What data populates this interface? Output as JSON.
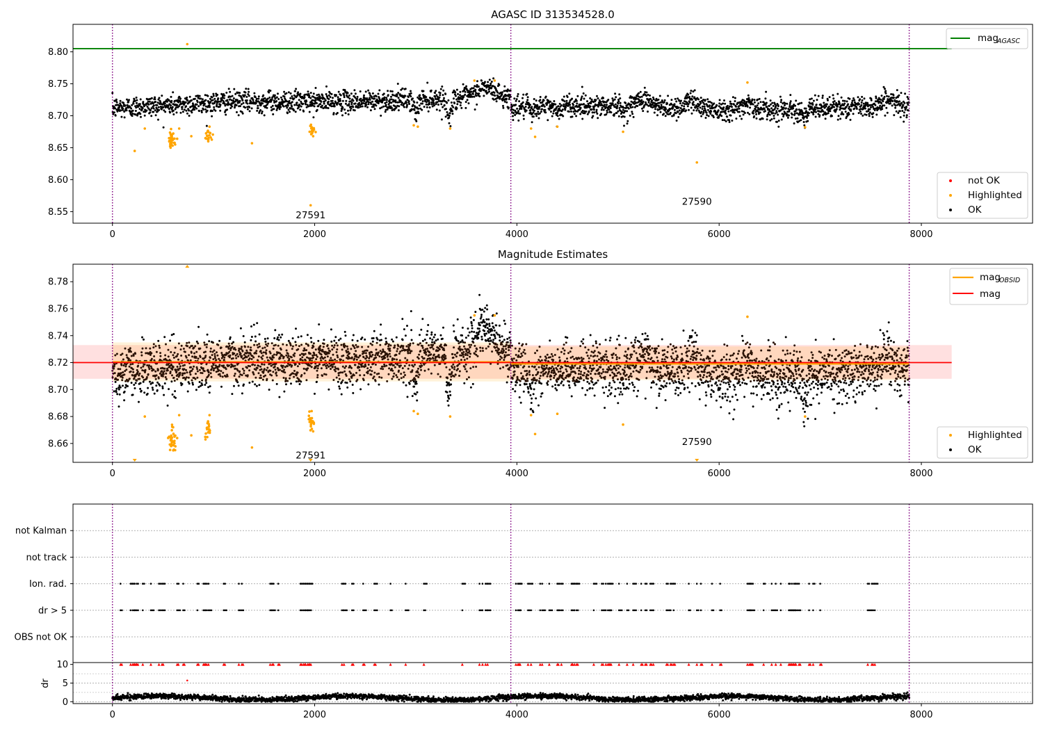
{
  "chart_data": [
    {
      "type": "scatter",
      "title": "AGASC ID 313534528.0",
      "xlim": [
        -390,
        9100
      ],
      "ylim": [
        8.532,
        8.843
      ],
      "xticks": [
        "0",
        "2000",
        "4000",
        "6000",
        "8000"
      ],
      "xtick_values": [
        0,
        2000,
        4000,
        6000,
        8000
      ],
      "yticks": [
        "8.55",
        "8.60",
        "8.65",
        "8.70",
        "8.75",
        "8.80"
      ],
      "ytick_values": [
        8.55,
        8.6,
        8.65,
        8.7,
        8.75,
        8.8
      ],
      "vlines": [
        0,
        3940,
        7880
      ],
      "hline": {
        "name": "mag",
        "subscript": "AGASC",
        "y": 8.805,
        "x_end": 8300,
        "color": "#008000"
      },
      "legend_lines": [
        {
          "name": "mag",
          "subscript": "AGASC",
          "color": "#008000"
        }
      ],
      "legend_points": [
        {
          "name": "not OK",
          "color": "#ff0000"
        },
        {
          "name": "Highlighted",
          "color": "#ffa500"
        },
        {
          "name": "OK",
          "color": "#000000"
        }
      ],
      "annotations": [
        {
          "text": "27591",
          "x": 1960,
          "y": 8.545
        },
        {
          "text": "27590",
          "x": 5780,
          "y": 8.566
        }
      ],
      "highlighted_points": [
        [
          220,
          8.645
        ],
        [
          320,
          8.68
        ],
        [
          560,
          8.665
        ],
        [
          580,
          8.658
        ],
        [
          600,
          8.672
        ],
        [
          620,
          8.655
        ],
        [
          640,
          8.664
        ],
        [
          660,
          8.68
        ],
        [
          740,
          8.812
        ],
        [
          780,
          8.668
        ],
        [
          920,
          8.665
        ],
        [
          940,
          8.675
        ],
        [
          960,
          8.683
        ],
        [
          1380,
          8.657
        ],
        [
          1950,
          8.675
        ],
        [
          1970,
          8.682
        ],
        [
          1985,
          8.668
        ],
        [
          1960,
          8.56
        ],
        [
          2980,
          8.685
        ],
        [
          3020,
          8.683
        ],
        [
          3340,
          8.68
        ],
        [
          3580,
          8.755
        ],
        [
          3780,
          8.755
        ],
        [
          4140,
          8.68
        ],
        [
          4180,
          8.667
        ],
        [
          4400,
          8.683
        ],
        [
          5050,
          8.675
        ],
        [
          5780,
          8.627
        ],
        [
          6280,
          8.752
        ],
        [
          6850,
          8.682
        ]
      ]
    },
    {
      "type": "scatter",
      "title": "Magnitude Estimates",
      "xlim": [
        -390,
        9100
      ],
      "ylim": [
        8.646,
        8.793
      ],
      "xticks": [
        "0",
        "2000",
        "4000",
        "6000",
        "8000"
      ],
      "xtick_values": [
        0,
        2000,
        4000,
        6000,
        8000
      ],
      "yticks": [
        "8.66",
        "8.68",
        "8.70",
        "8.72",
        "8.74",
        "8.76",
        "8.78"
      ],
      "ytick_values": [
        8.66,
        8.68,
        8.7,
        8.72,
        8.74,
        8.76,
        8.78
      ],
      "vlines": [
        0,
        3940,
        7880
      ],
      "mag": {
        "name": "mag",
        "y": 8.72,
        "band": [
          8.708,
          8.733
        ],
        "x_end": 8300,
        "color": "#ff0000"
      },
      "mag_obsid": [
        {
          "x0": 0,
          "x1": 3940,
          "y": 8.7205,
          "band": [
            8.706,
            8.735
          ]
        },
        {
          "x0": 3940,
          "x1": 7880,
          "y": 8.719,
          "band": [
            8.707,
            8.732
          ]
        }
      ],
      "legend_lines": [
        {
          "name": "mag",
          "subscript": "OBSID",
          "color": "#ffa500"
        },
        {
          "name": "mag",
          "subscript": "",
          "color": "#ff0000"
        }
      ],
      "legend_points": [
        {
          "name": "Highlighted",
          "color": "#ffa500"
        },
        {
          "name": "OK",
          "color": "#000000"
        }
      ],
      "annotations": [
        {
          "text": "27591",
          "x": 1960,
          "y": 8.6515
        },
        {
          "text": "27590",
          "x": 5780,
          "y": 8.6615
        }
      ],
      "highlighted_points": [
        [
          320,
          8.68
        ],
        [
          560,
          8.665
        ],
        [
          580,
          8.658
        ],
        [
          600,
          8.672
        ],
        [
          620,
          8.655
        ],
        [
          640,
          8.664
        ],
        [
          660,
          8.681
        ],
        [
          780,
          8.666
        ],
        [
          920,
          8.663
        ],
        [
          940,
          8.675
        ],
        [
          960,
          8.681
        ],
        [
          1380,
          8.657
        ],
        [
          1950,
          8.676
        ],
        [
          1970,
          8.684
        ],
        [
          1985,
          8.669
        ],
        [
          2980,
          8.684
        ],
        [
          3020,
          8.682
        ],
        [
          3340,
          8.68
        ],
        [
          3580,
          8.755
        ],
        [
          3780,
          8.755
        ],
        [
          4140,
          8.681
        ],
        [
          4180,
          8.667
        ],
        [
          4400,
          8.682
        ],
        [
          5050,
          8.674
        ],
        [
          6280,
          8.754
        ],
        [
          6850,
          8.68
        ]
      ],
      "out_of_range_markers": [
        {
          "x": 740,
          "dir": "up"
        },
        {
          "x": 220,
          "dir": "down"
        },
        {
          "x": 1960,
          "dir": "down"
        },
        {
          "x": 5780,
          "dir": "down"
        }
      ]
    },
    {
      "type": "scatter",
      "title": "",
      "xlim": [
        -390,
        9100
      ],
      "categories": [
        "OBS not OK",
        "dr > 5",
        "Ion. rad.",
        "not track",
        "not Kalman"
      ],
      "vlines": [
        0,
        3940,
        7880
      ],
      "flag_x": [
        80,
        180,
        200,
        220,
        240,
        300,
        380,
        460,
        490,
        640,
        700,
        840,
        900,
        920,
        950,
        1100,
        1250,
        1280,
        1560,
        1580,
        1640,
        1860,
        1890,
        1910,
        1930,
        1950,
        2270,
        2290,
        2370,
        2480,
        2590,
        2750,
        2900,
        3080,
        3460,
        3630,
        3660,
        3690,
        3710,
        3990,
        4010,
        4020,
        4110,
        4140,
        4230,
        4250,
        4320,
        4400,
        4410,
        4440,
        4540,
        4550,
        4570,
        4590,
        4760,
        4840,
        4880,
        4900,
        4920,
        5010,
        5090,
        5150,
        5230,
        5270,
        5320,
        5350,
        5480,
        5520,
        5550,
        5700,
        5780,
        5820,
        5930,
        6010,
        6280,
        6300,
        6320,
        6440,
        6520,
        6560,
        6610,
        6690,
        6700,
        6720,
        6740,
        6760,
        6790,
        6890,
        6930,
        7000,
        7470,
        7510,
        7540
      ]
    },
    {
      "type": "scatter",
      "title": "",
      "ylabel": "dr",
      "xlim": [
        -390,
        9100
      ],
      "ylim": [
        -0.5,
        10.5
      ],
      "xticks": [
        "0",
        "2000",
        "4000",
        "6000",
        "8000"
      ],
      "xtick_values": [
        0,
        2000,
        4000,
        6000,
        8000
      ],
      "yticks": [
        "0",
        "5",
        "10"
      ],
      "ytick_values": [
        0,
        5,
        10
      ],
      "vlines": [
        0,
        3940,
        7880
      ],
      "clip_value": 10,
      "outlier_points": [
        [
          740,
          5.7
        ]
      ]
    }
  ]
}
